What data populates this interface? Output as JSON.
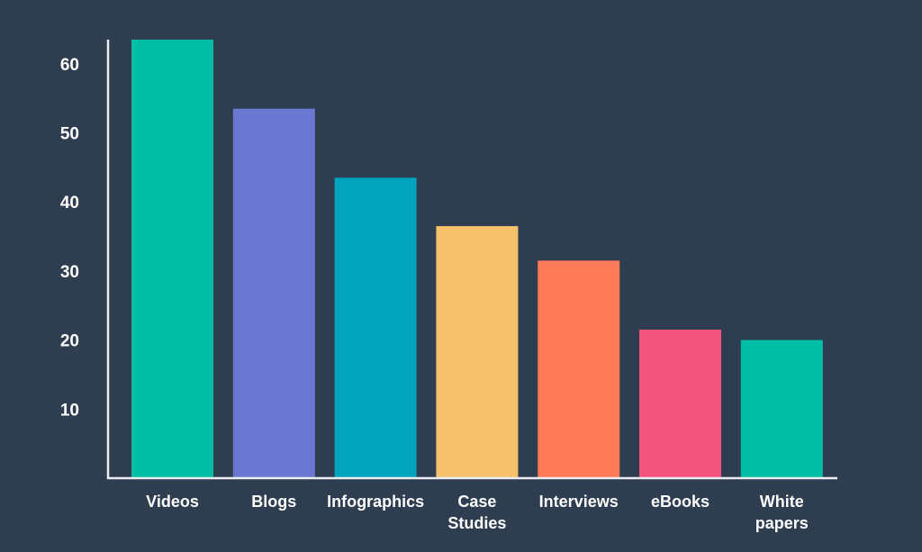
{
  "chart_data": {
    "type": "bar",
    "title": "",
    "xlabel": "",
    "ylabel": "",
    "categories": [
      "Videos",
      "Blogs",
      "Infographics",
      "Case Studies",
      "Interviews",
      "eBooks",
      "White papers"
    ],
    "category_lines": [
      [
        "Videos"
      ],
      [
        "Blogs"
      ],
      [
        "Infographics"
      ],
      [
        "Case",
        "Studies"
      ],
      [
        "Interviews"
      ],
      [
        "eBooks"
      ],
      [
        "White",
        "papers"
      ]
    ],
    "values": [
      63.5,
      53.5,
      43.5,
      36.5,
      31.5,
      21.5,
      20
    ],
    "colors": [
      "#00bda5",
      "#6a78d1",
      "#00a4bd",
      "#f5c26b",
      "#ff7a59",
      "#f2547d",
      "#00bda5"
    ],
    "yticks": [
      10,
      20,
      30,
      40,
      50,
      60
    ],
    "ylim": [
      0,
      63.5
    ],
    "grid": false,
    "legend": "none"
  },
  "theme": {
    "background": "#2e3d50",
    "axis_color": "#e9edf2",
    "text_color": "#ffffff"
  }
}
